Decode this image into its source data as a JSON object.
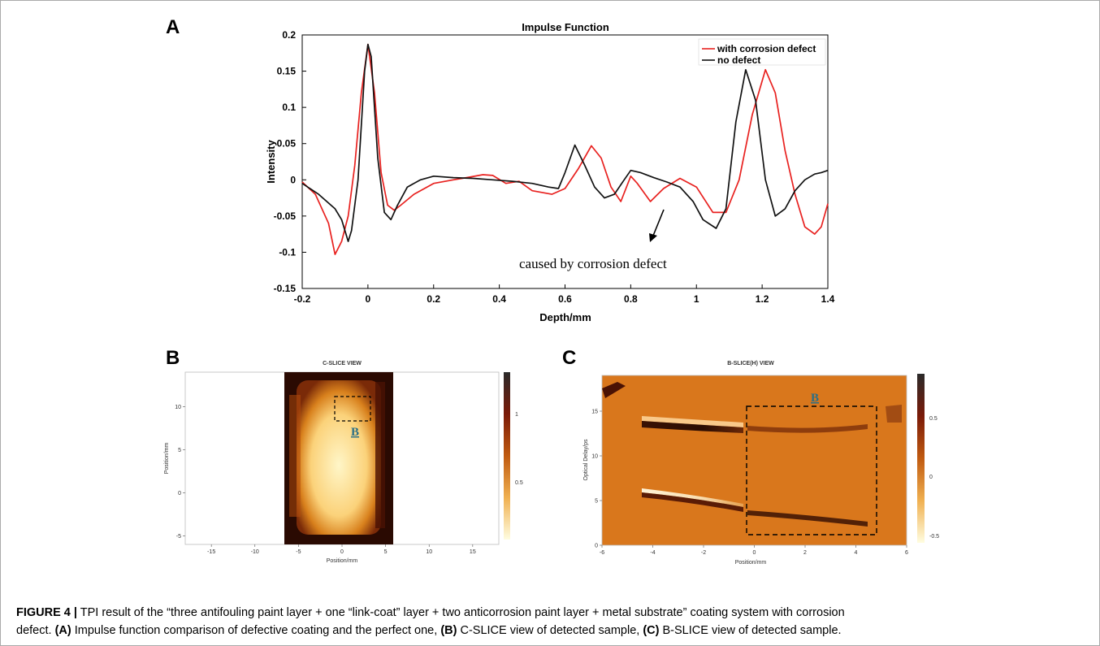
{
  "panels": {
    "a": "A",
    "b": "B",
    "c": "C"
  },
  "chart_data": [
    {
      "type": "line",
      "title": "Impulse Function",
      "xlabel": "Depth/mm",
      "ylabel": "Intensity",
      "xlim": [
        -0.2,
        1.4
      ],
      "ylim": [
        -0.15,
        0.2
      ],
      "xticks": [
        "-0.2",
        "0",
        "0.2",
        "0.4",
        "0.6",
        "0.8",
        "1",
        "1.2",
        "1.4"
      ],
      "yticks": [
        "-0.15",
        "-0.1",
        "-0.05",
        "0",
        "0.05",
        "0.1",
        "0.15",
        "0.2"
      ],
      "legend_position": "top-right",
      "annotation": "caused by corrosion defect",
      "series": [
        {
          "name": "with corrosion defect",
          "color": "#e8211f",
          "points": [
            [
              -0.2,
              -0.003
            ],
            [
              -0.16,
              -0.02
            ],
            [
              -0.12,
              -0.06
            ],
            [
              -0.1,
              -0.103
            ],
            [
              -0.08,
              -0.085
            ],
            [
              -0.06,
              -0.05
            ],
            [
              -0.04,
              0.02
            ],
            [
              -0.02,
              0.12
            ],
            [
              0,
              0.187
            ],
            [
              0.02,
              0.12
            ],
            [
              0.04,
              0.01
            ],
            [
              0.06,
              -0.035
            ],
            [
              0.08,
              -0.042
            ],
            [
              0.1,
              -0.035
            ],
            [
              0.14,
              -0.02
            ],
            [
              0.2,
              -0.005
            ],
            [
              0.26,
              0.0
            ],
            [
              0.3,
              0.003
            ],
            [
              0.35,
              0.007
            ],
            [
              0.38,
              0.006
            ],
            [
              0.42,
              -0.005
            ],
            [
              0.46,
              -0.002
            ],
            [
              0.5,
              -0.015
            ],
            [
              0.56,
              -0.02
            ],
            [
              0.6,
              -0.012
            ],
            [
              0.64,
              0.015
            ],
            [
              0.68,
              0.047
            ],
            [
              0.71,
              0.03
            ],
            [
              0.74,
              -0.01
            ],
            [
              0.77,
              -0.03
            ],
            [
              0.8,
              0.005
            ],
            [
              0.82,
              -0.005
            ],
            [
              0.86,
              -0.03
            ],
            [
              0.9,
              -0.012
            ],
            [
              0.95,
              0.002
            ],
            [
              1.0,
              -0.01
            ],
            [
              1.05,
              -0.045
            ],
            [
              1.09,
              -0.045
            ],
            [
              1.13,
              0.0
            ],
            [
              1.17,
              0.09
            ],
            [
              1.21,
              0.152
            ],
            [
              1.24,
              0.12
            ],
            [
              1.27,
              0.04
            ],
            [
              1.3,
              -0.02
            ],
            [
              1.33,
              -0.065
            ],
            [
              1.36,
              -0.075
            ],
            [
              1.38,
              -0.065
            ],
            [
              1.4,
              -0.033
            ]
          ]
        },
        {
          "name": "no defect",
          "color": "#111111",
          "points": [
            [
              -0.2,
              -0.005
            ],
            [
              -0.15,
              -0.02
            ],
            [
              -0.1,
              -0.04
            ],
            [
              -0.08,
              -0.055
            ],
            [
              -0.06,
              -0.085
            ],
            [
              -0.05,
              -0.07
            ],
            [
              -0.03,
              0.0
            ],
            [
              -0.01,
              0.15
            ],
            [
              0,
              0.187
            ],
            [
              0.01,
              0.17
            ],
            [
              0.03,
              0.03
            ],
            [
              0.05,
              -0.045
            ],
            [
              0.07,
              -0.055
            ],
            [
              0.09,
              -0.035
            ],
            [
              0.12,
              -0.01
            ],
            [
              0.16,
              0.0
            ],
            [
              0.2,
              0.005
            ],
            [
              0.26,
              0.003
            ],
            [
              0.32,
              0.002
            ],
            [
              0.38,
              0.0
            ],
            [
              0.44,
              -0.002
            ],
            [
              0.5,
              -0.005
            ],
            [
              0.55,
              -0.01
            ],
            [
              0.58,
              -0.012
            ],
            [
              0.6,
              0.01
            ],
            [
              0.63,
              0.048
            ],
            [
              0.66,
              0.02
            ],
            [
              0.69,
              -0.01
            ],
            [
              0.72,
              -0.025
            ],
            [
              0.75,
              -0.02
            ],
            [
              0.78,
              0.0
            ],
            [
              0.8,
              0.013
            ],
            [
              0.83,
              0.01
            ],
            [
              0.87,
              0.003
            ],
            [
              0.91,
              -0.003
            ],
            [
              0.95,
              -0.01
            ],
            [
              0.99,
              -0.03
            ],
            [
              1.02,
              -0.055
            ],
            [
              1.06,
              -0.067
            ],
            [
              1.09,
              -0.04
            ],
            [
              1.12,
              0.08
            ],
            [
              1.15,
              0.152
            ],
            [
              1.18,
              0.11
            ],
            [
              1.21,
              0.0
            ],
            [
              1.24,
              -0.05
            ],
            [
              1.27,
              -0.04
            ],
            [
              1.3,
              -0.015
            ],
            [
              1.33,
              0.0
            ],
            [
              1.36,
              0.008
            ],
            [
              1.38,
              0.01
            ],
            [
              1.4,
              0.013
            ]
          ]
        }
      ]
    },
    {
      "type": "heatmap",
      "title": "C-SLICE VIEW",
      "xlabel": "Position/mm",
      "ylabel": "Position/mm",
      "xlim": [
        -18,
        18
      ],
      "ylim": [
        -6,
        14
      ],
      "xticks": [
        "-15",
        "-10",
        "-5",
        "0",
        "5",
        "10",
        "15"
      ],
      "yticks": [
        "10",
        "5",
        "0",
        "-5"
      ],
      "colorbar_ticks": [
        "1",
        "0.5"
      ],
      "box_label": "B"
    },
    {
      "type": "heatmap",
      "title": "B-SLICE(H) VIEW",
      "xlabel": "Position/mm",
      "ylabel": "Optical Delay/ps",
      "xlim": [
        -6,
        6
      ],
      "ylim": [
        0,
        19
      ],
      "xticks": [
        "-6",
        "-4",
        "-2",
        "0",
        "2",
        "4",
        "6"
      ],
      "yticks": [
        "15",
        "10",
        "5",
        "0"
      ],
      "colorbar_ticks": [
        "0.5",
        "0",
        "-0.5"
      ],
      "box_label": "B"
    }
  ],
  "caption": {
    "label": "FIGURE 4 |",
    "line1": " TPI result of the “three antifouling paint layer + one “link-coat” layer + two anticorrosion paint layer + metal substrate” coating system with corrosion",
    "line2a": "defect. ",
    "ref_a": "(A)",
    "line2b": " Impulse function comparison of defective coating and the perfect one, ",
    "ref_b": "(B)",
    "line2c": " C-SLICE view of detected sample, ",
    "ref_c": "(C)",
    "line2d": " B-SLICE view of detected sample."
  }
}
